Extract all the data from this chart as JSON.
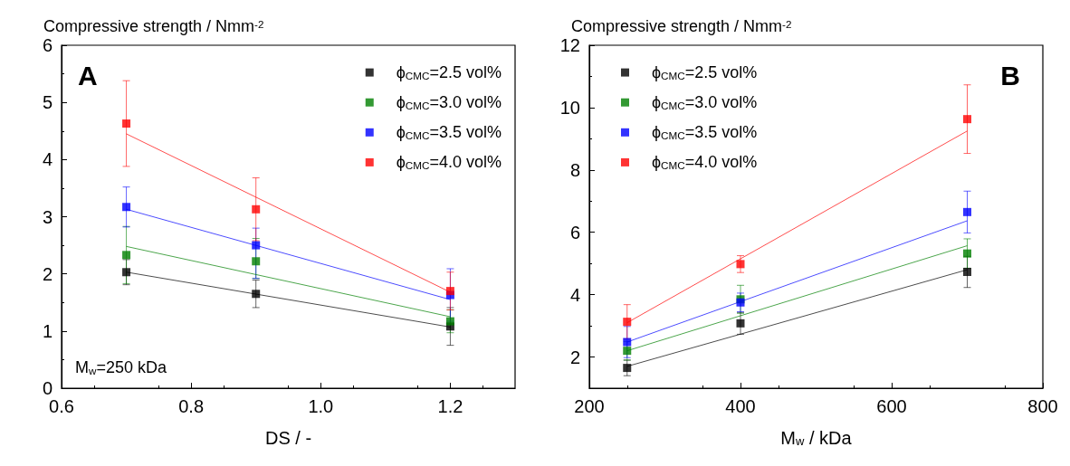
{
  "chart_data": [
    {
      "type": "scatter",
      "ylabel": "Compressive strength / Nmm$^{-2}$",
      "xlabel": "DS / -",
      "x": [
        0.7,
        0.9,
        1.2
      ],
      "xlim": [
        0.6,
        1.3
      ],
      "xticks": [
        0.6,
        0.8,
        {
          "value": 1,
          "label": "1.0"
        },
        1.2
      ],
      "ylim": [
        0,
        6
      ],
      "yticks": [
        0,
        1,
        2,
        3,
        4,
        5,
        6
      ],
      "legend": "top right",
      "marker": "square",
      "grid": false,
      "annotations": [
        "A",
        "M$_{w}$=250 kDa"
      ],
      "series": [
        {
          "name": "ϕ$_{CMC}$=2.5 vol%",
          "color": "#000000",
          "values": [
            2.03,
            1.65,
            1.08
          ],
          "errors": [
            0.22,
            0.24,
            0.33
          ]
        },
        {
          "name": "ϕ$_{CMC}$=3.0 vol%",
          "color": "#008000",
          "values": [
            2.33,
            2.22,
            1.17
          ],
          "errors": [
            0.5,
            [
              1.92,
              2.62
            ],
            0.2
          ]
        },
        {
          "name": "ϕ$_{CMC}$=3.5 vol%",
          "color": "#0000ff",
          "values": [
            3.17,
            2.5,
            1.63
          ],
          "errors": [
            0.35,
            [
              1.92,
              2.8
            ],
            0.46
          ]
        },
        {
          "name": "ϕ$_{CMC}$=4.0 vol%",
          "color": "#ff0000",
          "values": [
            4.63,
            3.13,
            1.7
          ],
          "errors": [
            0.75,
            0.55,
            0.33
          ]
        },
        {
          "type": "line",
          "marker": "none",
          "color": "#000000",
          "x": [
            0.7,
            1.2
          ],
          "values": [
            2.03,
            1.07
          ]
        },
        {
          "type": "line",
          "marker": "none",
          "color": "#008000",
          "x": [
            0.7,
            1.2
          ],
          "values": [
            2.48,
            1.25
          ]
        },
        {
          "type": "line",
          "marker": "none",
          "color": "#0000ff",
          "x": [
            0.7,
            1.2
          ],
          "values": [
            3.13,
            1.55
          ]
        },
        {
          "type": "line",
          "marker": "none",
          "color": "#ff0000",
          "x": [
            0.7,
            1.2
          ],
          "values": [
            4.45,
            1.68
          ]
        }
      ]
    },
    {
      "type": "scatter",
      "ylabel": "Compressive strength / Nmm$^{-2}$",
      "xlabel": "M$_{w}$ / kDa",
      "x": [
        250,
        400,
        700
      ],
      "xlim": [
        200,
        800
      ],
      "xticks": [
        200,
        400,
        600,
        800
      ],
      "ylim": [
        1,
        12
      ],
      "yticks": [
        2,
        4,
        6,
        8,
        10,
        12
      ],
      "legend": "top left",
      "marker": "square",
      "grid": false,
      "annotations": [
        "B"
      ],
      "series": [
        {
          "name": "ϕ$_{CMC}$=2.5 vol%",
          "color": "#000000",
          "values": [
            1.65,
            3.08,
            4.73
          ],
          "errors": [
            0.25,
            0.35,
            0.5
          ]
        },
        {
          "name": "ϕ$_{CMC}$=3.0 vol%",
          "color": "#008000",
          "values": [
            2.2,
            3.85,
            5.32
          ],
          "errors": [
            0.3,
            0.45,
            0.47
          ]
        },
        {
          "name": "ϕ$_{CMC}$=3.5 vol%",
          "color": "#0000ff",
          "values": [
            2.48,
            3.75,
            6.65
          ],
          "errors": [
            0.5,
            0.3,
            0.67
          ]
        },
        {
          "name": "ϕ$_{CMC}$=4.0 vol%",
          "color": "#ff0000",
          "values": [
            3.13,
            4.98,
            9.63
          ],
          "errors": [
            0.55,
            0.27,
            1.1
          ]
        },
        {
          "type": "line",
          "marker": "none",
          "color": "#000000",
          "x": [
            250,
            700
          ],
          "values": [
            1.7,
            4.8
          ]
        },
        {
          "type": "line",
          "marker": "none",
          "color": "#008000",
          "x": [
            250,
            700
          ],
          "values": [
            2.2,
            5.57
          ]
        },
        {
          "type": "line",
          "marker": "none",
          "color": "#0000ff",
          "x": [
            250,
            700
          ],
          "values": [
            2.48,
            6.37
          ]
        },
        {
          "type": "line",
          "marker": "none",
          "color": "#ff0000",
          "x": [
            250,
            700
          ],
          "values": [
            3.1,
            9.25
          ]
        }
      ]
    }
  ]
}
